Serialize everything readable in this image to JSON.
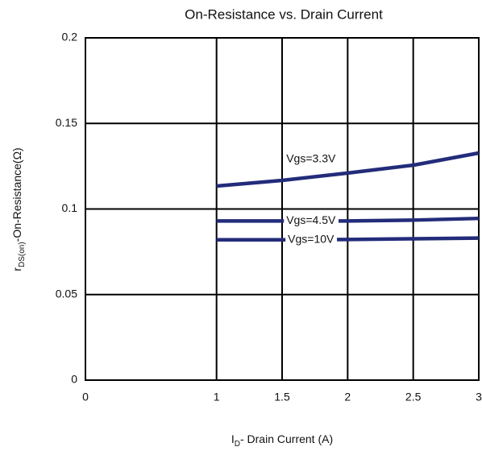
{
  "chart_data": {
    "type": "line",
    "title": "On-Resistance vs. Drain Current",
    "x_label": [
      "I",
      "D",
      "- Drain Current (A)"
    ],
    "y_label": [
      "r",
      "DS(on)",
      "-On-Resistance(Ω)"
    ],
    "x": [
      1,
      1.5,
      2,
      2.5,
      3
    ],
    "series": [
      {
        "name": "Vgs=3.3V",
        "color": "#232c7a",
        "values": [
          0.1134,
          0.1167,
          0.121,
          0.1256,
          0.1327
        ]
      },
      {
        "name": "Vgs=4.5V",
        "color": "#232c7a",
        "values": [
          0.093,
          0.093,
          0.093,
          0.0935,
          0.0945
        ]
      },
      {
        "name": "Vgs=10V",
        "color": "#232c7a",
        "values": [
          0.082,
          0.082,
          0.0822,
          0.0826,
          0.083
        ]
      }
    ],
    "xlim": [
      0,
      3
    ],
    "xticks": [
      0,
      1,
      1.5,
      2,
      2.5,
      3
    ],
    "ylim": [
      0,
      0.2
    ],
    "yticks": [
      0,
      0.05,
      0.1,
      0.15,
      0.2
    ],
    "grid": true
  }
}
